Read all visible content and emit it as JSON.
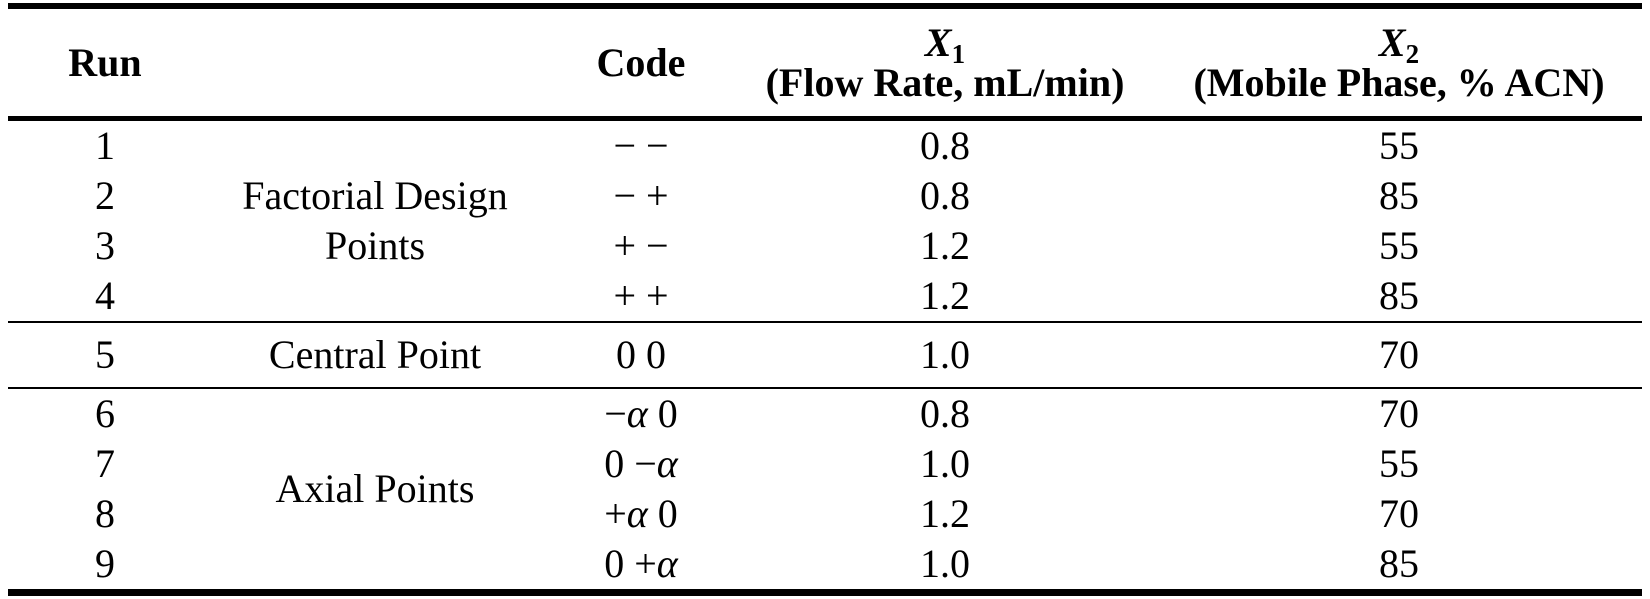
{
  "colors": {
    "text": "#000000",
    "background": "#ffffff",
    "rule": "#000000"
  },
  "header": {
    "run": "Run",
    "group": "",
    "code": "Code",
    "x1": {
      "base": "X",
      "sub": "1",
      "desc": "(Flow Rate, mL/min)"
    },
    "x2": {
      "base": "X",
      "sub": "2",
      "desc": "(Mobile Phase, % ACN)"
    }
  },
  "groups": [
    {
      "label": "Factorial Design Points",
      "rows": [
        {
          "run": "1",
          "code": "− −",
          "x1": "0.8",
          "x2": "55"
        },
        {
          "run": "2",
          "code": "− +",
          "x1": "0.8",
          "x2": "85"
        },
        {
          "run": "3",
          "code": "+ −",
          "x1": "1.2",
          "x2": "55"
        },
        {
          "run": "4",
          "code": "+ +",
          "x1": "1.2",
          "x2": "85"
        }
      ]
    },
    {
      "label": "Central Point",
      "rows": [
        {
          "run": "5",
          "code": "0 0",
          "x1": "1.0",
          "x2": "70"
        }
      ]
    },
    {
      "label": "Axial Points",
      "rows": [
        {
          "run": "6",
          "code": "−α 0",
          "x1": "0.8",
          "x2": "70"
        },
        {
          "run": "7",
          "code": "0 −α",
          "x1": "1.0",
          "x2": "55"
        },
        {
          "run": "8",
          "code": "+α 0",
          "x1": "1.2",
          "x2": "70"
        },
        {
          "run": "9",
          "code": "0 +α",
          "x1": "1.0",
          "x2": "85"
        }
      ]
    }
  ]
}
